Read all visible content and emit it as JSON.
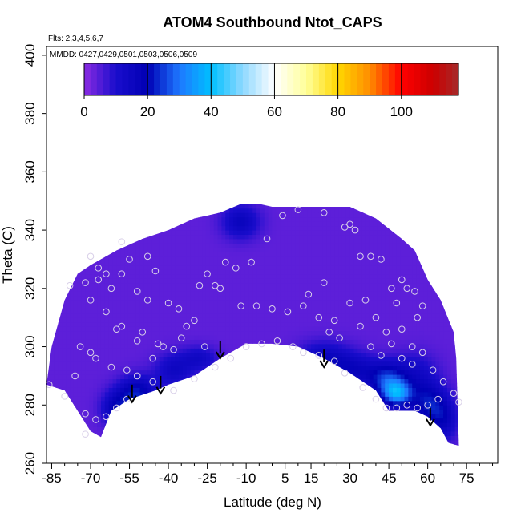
{
  "chart_data": {
    "type": "heatmap",
    "title": "ATOM4 Southbound Ntot_CAPS",
    "flights_note": "Flts: 2,3,4,5,6,7",
    "dates_note": "MMDD: 0427,0429,0501,0503,0506,0509",
    "xlabel": "Latitude (deg N)",
    "ylabel": "Theta (C)",
    "xlim": [
      -87,
      87
    ],
    "ylim": [
      260,
      403
    ],
    "x_ticks": [
      -85,
      -70,
      -55,
      -40,
      -25,
      -10,
      5,
      15,
      30,
      45,
      60,
      75
    ],
    "x_tick_labels": [
      "-85",
      "-70",
      "-55",
      "-40",
      "-25",
      "-10",
      "5",
      "15",
      "30",
      "45",
      "60",
      "75"
    ],
    "y_ticks": [
      260,
      280,
      300,
      320,
      340,
      360,
      380,
      400
    ],
    "y_tick_labels": [
      "260",
      "280",
      "300",
      "320",
      "340",
      "360",
      "380",
      "400"
    ],
    "colorbar": {
      "min": 0,
      "max": 118,
      "ticks": [
        0,
        20,
        40,
        60,
        80,
        100
      ],
      "tick_labels": [
        "0",
        "20",
        "40",
        "60",
        "80",
        "100"
      ],
      "stops": [
        {
          "v": 0,
          "c": "#8a2be2"
        },
        {
          "v": 10,
          "c": "#1a0dcc"
        },
        {
          "v": 20,
          "c": "#0000b4"
        },
        {
          "v": 30,
          "c": "#1e78ff"
        },
        {
          "v": 40,
          "c": "#00bfff"
        },
        {
          "v": 50,
          "c": "#8ed8ff"
        },
        {
          "v": 60,
          "c": "#ffffff"
        },
        {
          "v": 70,
          "c": "#ffff99"
        },
        {
          "v": 80,
          "c": "#ffd700"
        },
        {
          "v": 90,
          "c": "#ff8c00"
        },
        {
          "v": 100,
          "c": "#ff0000"
        },
        {
          "v": 110,
          "c": "#cc0000"
        },
        {
          "v": 118,
          "c": "#a52a2a"
        }
      ]
    },
    "field": {
      "background_value": 4,
      "top_boundary": [
        [
          -87,
          287
        ],
        [
          -85,
          300
        ],
        [
          -80,
          316
        ],
        [
          -75,
          325
        ],
        [
          -70,
          328
        ],
        [
          -60,
          333
        ],
        [
          -50,
          337
        ],
        [
          -40,
          340
        ],
        [
          -30,
          344
        ],
        [
          -20,
          346
        ],
        [
          -12,
          349
        ],
        [
          -5,
          349
        ],
        [
          0,
          348
        ],
        [
          20,
          348
        ],
        [
          30,
          348
        ],
        [
          40,
          344
        ],
        [
          50,
          337
        ],
        [
          55,
          333
        ],
        [
          60,
          323
        ],
        [
          65,
          316
        ],
        [
          70,
          305
        ],
        [
          71,
          296
        ]
      ],
      "bottom_boundary": [
        [
          -87,
          287
        ],
        [
          -80,
          285
        ],
        [
          -75,
          278
        ],
        [
          -70,
          271
        ],
        [
          -66,
          269
        ],
        [
          -62,
          278
        ],
        [
          -55,
          282
        ],
        [
          -45,
          285
        ],
        [
          -40,
          287
        ],
        [
          -30,
          290
        ],
        [
          -20,
          296
        ],
        [
          -10,
          301
        ],
        [
          0,
          301
        ],
        [
          10,
          300
        ],
        [
          20,
          296
        ],
        [
          30,
          291
        ],
        [
          40,
          285
        ],
        [
          45,
          278
        ],
        [
          55,
          278
        ],
        [
          60,
          276
        ],
        [
          65,
          272
        ],
        [
          68,
          267
        ],
        [
          72,
          266
        ],
        [
          71,
          296
        ]
      ],
      "enhancements": [
        {
          "lat": -52,
          "theta": 284,
          "value": 18,
          "sx": 5,
          "sy": 4
        },
        {
          "lat": -60,
          "theta": 279,
          "value": 14,
          "sx": 4,
          "sy": 4
        },
        {
          "lat": -38,
          "theta": 292,
          "value": 10,
          "sx": 5,
          "sy": 4
        },
        {
          "lat": -28,
          "theta": 296,
          "value": 9,
          "sx": 5,
          "sy": 3
        },
        {
          "lat": -12,
          "theta": 343,
          "value": 12,
          "sx": 5,
          "sy": 4
        },
        {
          "lat": 20,
          "theta": 296,
          "value": 12,
          "sx": 7,
          "sy": 4
        },
        {
          "lat": 32,
          "theta": 292,
          "value": 11,
          "sx": 6,
          "sy": 4
        },
        {
          "lat": 48,
          "theta": 284,
          "value": 28,
          "sx": 4,
          "sy": 3
        },
        {
          "lat": 44,
          "theta": 289,
          "value": 18,
          "sx": 5,
          "sy": 4
        },
        {
          "lat": 60,
          "theta": 281,
          "value": 16,
          "sx": 5,
          "sy": 5
        },
        {
          "lat": 66,
          "theta": 275,
          "value": 12,
          "sx": 4,
          "sy": 5
        },
        {
          "lat": 55,
          "theta": 291,
          "value": 8,
          "sx": 6,
          "sy": 5
        }
      ]
    },
    "arrows": [
      {
        "lat": -54,
        "theta_top": 287,
        "theta_tip": 281
      },
      {
        "lat": -43,
        "theta_top": 290,
        "theta_tip": 284
      },
      {
        "lat": -20,
        "theta_top": 302,
        "theta_tip": 296
      },
      {
        "lat": 20,
        "theta_top": 299,
        "theta_tip": 293
      },
      {
        "lat": 61,
        "theta_top": 279,
        "theta_tip": 273
      }
    ],
    "sample_points": [
      [
        -86,
        287
      ],
      [
        -70,
        331
      ],
      [
        -67,
        327
      ],
      [
        -67,
        323
      ],
      [
        -64,
        325
      ],
      [
        -58,
        336
      ],
      [
        -55,
        330
      ],
      [
        -78,
        321
      ],
      [
        -72,
        322
      ],
      [
        -70,
        316
      ],
      [
        -62,
        320
      ],
      [
        -48,
        331
      ],
      [
        -45,
        326
      ],
      [
        -60,
        306
      ],
      [
        -58,
        307
      ],
      [
        -52,
        302
      ],
      [
        -50,
        305
      ],
      [
        -44,
        301
      ],
      [
        -42,
        300
      ],
      [
        -38,
        299
      ],
      [
        -35,
        303
      ],
      [
        -33,
        307
      ],
      [
        -30,
        309
      ],
      [
        -22,
        321
      ],
      [
        -18,
        329
      ],
      [
        -14,
        327
      ],
      [
        -8,
        329
      ],
      [
        -2,
        337
      ],
      [
        4,
        345
      ],
      [
        10,
        347
      ],
      [
        20,
        346
      ],
      [
        28,
        341
      ],
      [
        30,
        342
      ],
      [
        32,
        340
      ],
      [
        34,
        331
      ],
      [
        38,
        331
      ],
      [
        42,
        330
      ],
      [
        46,
        320
      ],
      [
        48,
        315
      ],
      [
        50,
        323
      ],
      [
        52,
        320
      ],
      [
        55,
        319
      ],
      [
        58,
        314
      ],
      [
        56,
        310
      ],
      [
        -74,
        300
      ],
      [
        -70,
        298
      ],
      [
        -68,
        296
      ],
      [
        -62,
        293
      ],
      [
        -56,
        292
      ],
      [
        -52,
        290
      ],
      [
        -46,
        288
      ],
      [
        -38,
        285
      ],
      [
        -30,
        289
      ],
      [
        -22,
        293
      ],
      [
        -16,
        296
      ],
      [
        -10,
        300
      ],
      [
        -4,
        301
      ],
      [
        2,
        302
      ],
      [
        8,
        300
      ],
      [
        12,
        298
      ],
      [
        18,
        297
      ],
      [
        24,
        295
      ],
      [
        28,
        291
      ],
      [
        35,
        286
      ],
      [
        40,
        282
      ],
      [
        44,
        279
      ],
      [
        48,
        279
      ],
      [
        52,
        280
      ],
      [
        56,
        279
      ],
      [
        60,
        280
      ],
      [
        64,
        282
      ],
      [
        -72,
        277
      ],
      [
        -68,
        275
      ],
      [
        -64,
        276
      ],
      [
        -60,
        279
      ],
      [
        -56,
        282
      ],
      [
        -72,
        270
      ],
      [
        -58,
        325
      ],
      [
        -52,
        319
      ],
      [
        -48,
        316
      ],
      [
        -40,
        315
      ],
      [
        -36,
        313
      ],
      [
        -28,
        321
      ],
      [
        -25,
        325
      ],
      [
        -20,
        320
      ],
      [
        -12,
        314
      ],
      [
        -6,
        314
      ],
      [
        0,
        313
      ],
      [
        6,
        312
      ],
      [
        12,
        314
      ],
      [
        14,
        318
      ],
      [
        18,
        310
      ],
      [
        24,
        309
      ],
      [
        30,
        315
      ],
      [
        36,
        316
      ],
      [
        40,
        310
      ],
      [
        44,
        305
      ],
      [
        50,
        306
      ],
      [
        54,
        300
      ],
      [
        58,
        298
      ],
      [
        62,
        292
      ],
      [
        66,
        288
      ],
      [
        70,
        284
      ],
      [
        72,
        281
      ],
      [
        -80,
        283
      ],
      [
        -76,
        290
      ],
      [
        -64,
        312
      ],
      [
        -46,
        296
      ],
      [
        -26,
        300
      ],
      [
        20,
        322
      ],
      [
        22,
        305
      ],
      [
        26,
        303
      ],
      [
        34,
        307
      ],
      [
        38,
        300
      ],
      [
        42,
        297
      ],
      [
        46,
        301
      ],
      [
        50,
        296
      ],
      [
        54,
        294
      ]
    ]
  }
}
